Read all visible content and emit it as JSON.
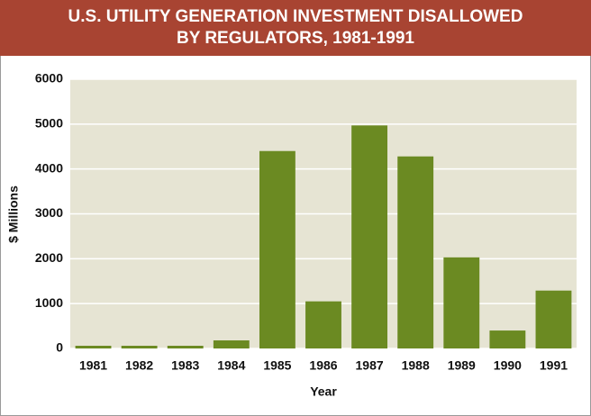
{
  "chart_data": {
    "type": "bar",
    "title": [
      "U.S. UTILITY GENERATION INVESTMENT DISALLOWED",
      "BY REGULATORS, 1981-1991"
    ],
    "x_label": "Year",
    "y_label": "$ Millions",
    "categories": [
      "1981",
      "1982",
      "1983",
      "1984",
      "1985",
      "1986",
      "1987",
      "1988",
      "1989",
      "1990",
      "1991"
    ],
    "values": [
      60,
      60,
      60,
      180,
      4400,
      1050,
      4970,
      4280,
      2030,
      400,
      1290
    ],
    "color": "#6b8a22",
    "ylim": [
      0,
      6000
    ],
    "yticks": [
      0,
      1000,
      2000,
      3000,
      4000,
      5000,
      6000
    ],
    "grid": true
  }
}
